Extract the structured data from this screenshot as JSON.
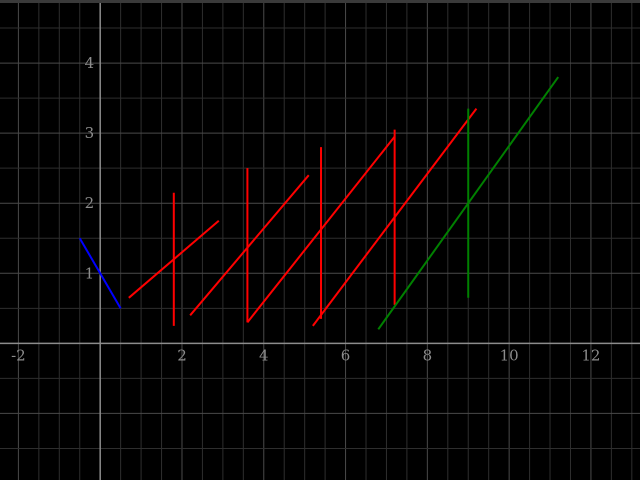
{
  "chart_data": {
    "type": "line",
    "title": "",
    "xlabel": "",
    "ylabel": "",
    "xlim": [
      -2.45,
      13.2
    ],
    "ylim": [
      -1.95,
      4.9
    ],
    "grid": true,
    "minor_grid_step": 0.5,
    "major_grid_step": 2,
    "background": "#000000",
    "grid_color": "#2e2e2e",
    "major_grid_color": "#4a4a4a",
    "axis_color": "#8c8c8c",
    "x_ticks": [
      {
        "value": -2,
        "label": "-2"
      },
      {
        "value": 2,
        "label": "2"
      },
      {
        "value": 4,
        "label": "4"
      },
      {
        "value": 6,
        "label": "6"
      },
      {
        "value": 8,
        "label": "8"
      },
      {
        "value": 10,
        "label": "10"
      },
      {
        "value": 12,
        "label": "12"
      }
    ],
    "y_ticks": [
      {
        "value": 1,
        "label": "1"
      },
      {
        "value": 2,
        "label": "2"
      },
      {
        "value": 3,
        "label": "3"
      },
      {
        "value": 4,
        "label": "4"
      }
    ],
    "segments": [
      {
        "color": "#0000ff",
        "x": [
          -0.5,
          0.5
        ],
        "y": [
          1.5,
          0.5
        ]
      },
      {
        "color": "#ff0000",
        "x": [
          0.7,
          2.9
        ],
        "y": [
          0.65,
          1.75
        ]
      },
      {
        "color": "#ff0000",
        "x": [
          1.8,
          1.8
        ],
        "y": [
          0.25,
          2.15
        ]
      },
      {
        "color": "#ff0000",
        "x": [
          2.2,
          5.1
        ],
        "y": [
          0.4,
          2.4
        ]
      },
      {
        "color": "#ff0000",
        "x": [
          3.6,
          3.6
        ],
        "y": [
          0.3,
          2.5
        ]
      },
      {
        "color": "#ff0000",
        "x": [
          3.6,
          7.2
        ],
        "y": [
          0.3,
          2.95
        ]
      },
      {
        "color": "#ff0000",
        "x": [
          5.4,
          5.4
        ],
        "y": [
          0.35,
          2.8
        ]
      },
      {
        "color": "#ff0000",
        "x": [
          5.2,
          9.2
        ],
        "y": [
          0.25,
          3.35
        ]
      },
      {
        "color": "#ff0000",
        "x": [
          7.2,
          7.2
        ],
        "y": [
          0.55,
          3.05
        ]
      },
      {
        "color": "#008000",
        "x": [
          6.8,
          11.2
        ],
        "y": [
          0.2,
          3.8
        ]
      },
      {
        "color": "#008000",
        "x": [
          9.0,
          9.0
        ],
        "y": [
          0.65,
          3.35
        ]
      }
    ]
  }
}
